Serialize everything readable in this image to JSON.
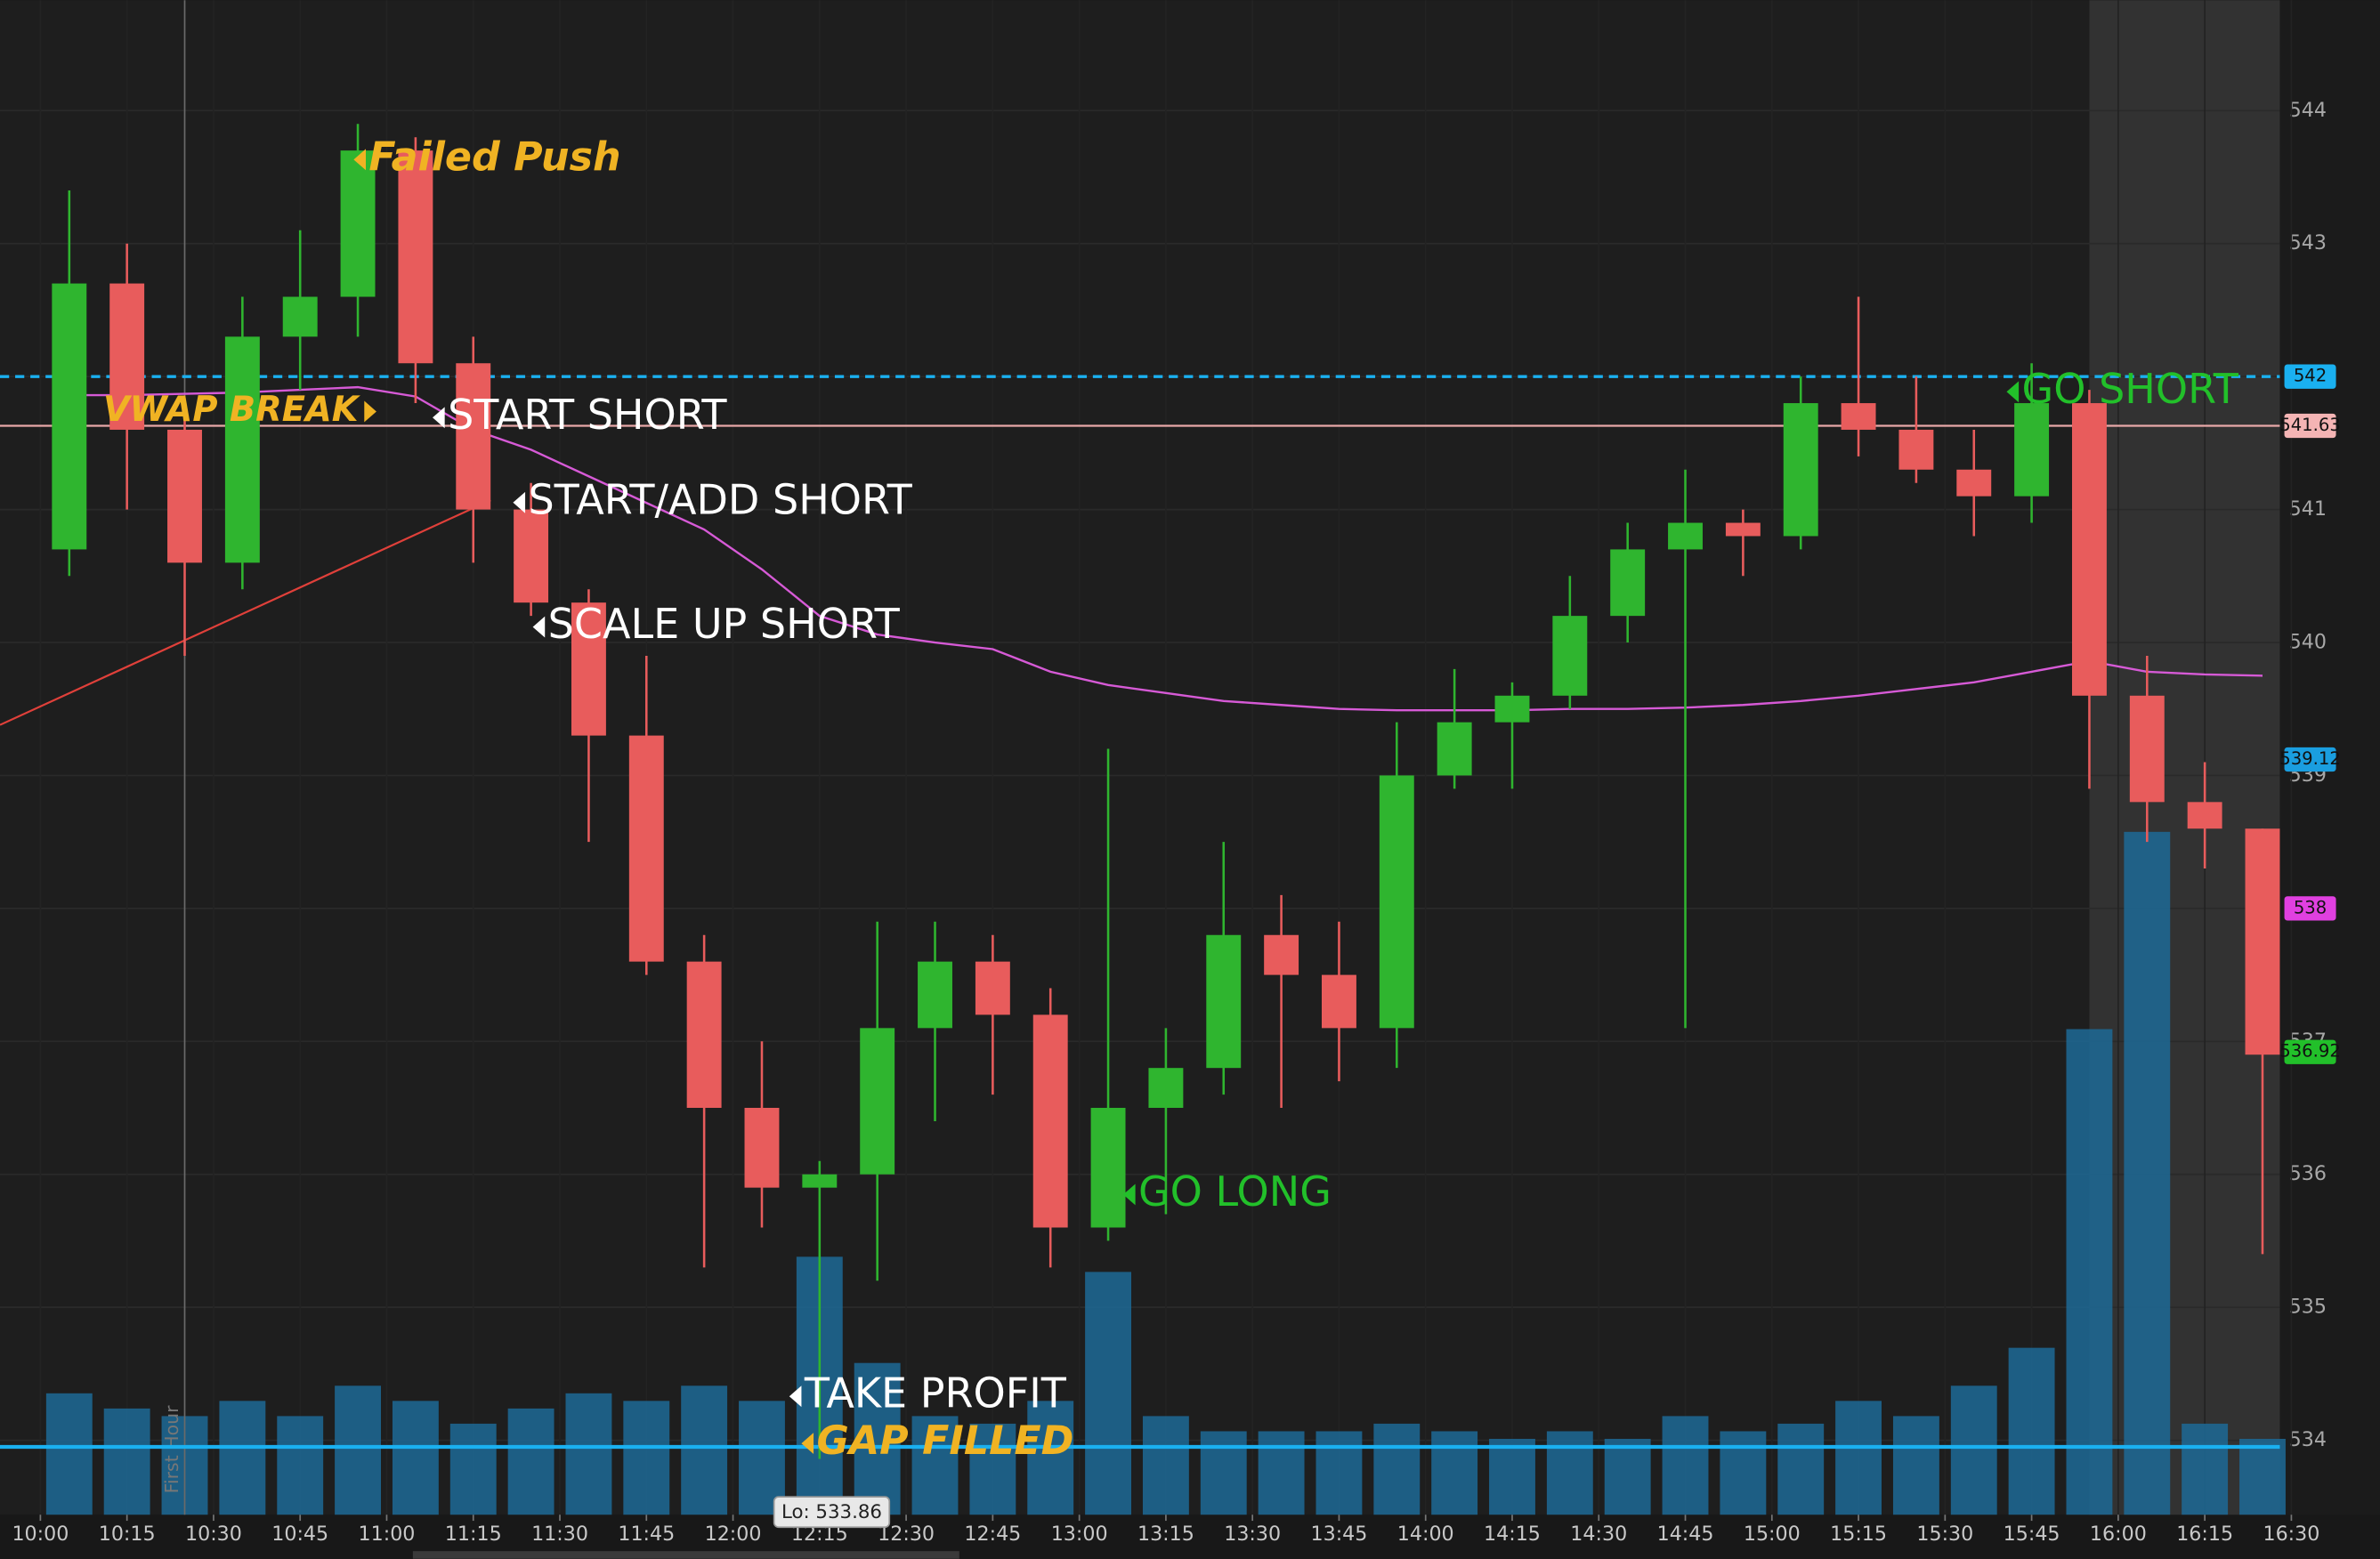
{
  "chart_data": {
    "type": "candlestick",
    "x": [
      "10:00",
      "10:10",
      "10:20",
      "10:30",
      "10:40",
      "10:50",
      "11:00",
      "11:10",
      "11:20",
      "11:30",
      "11:40",
      "11:50",
      "12:00",
      "12:10",
      "12:20",
      "12:30",
      "12:40",
      "12:50",
      "13:00",
      "13:10",
      "13:20",
      "13:30",
      "13:40",
      "13:50",
      "14:00",
      "14:10",
      "14:20",
      "14:30",
      "14:40",
      "14:50",
      "15:00",
      "15:10",
      "15:20",
      "15:30",
      "15:40",
      "15:50",
      "16:00",
      "16:10",
      "16:20"
    ],
    "open": [
      540.7,
      542.7,
      541.6,
      540.6,
      542.3,
      542.6,
      543.7,
      542.1,
      541.0,
      540.3,
      539.3,
      537.6,
      536.5,
      535.9,
      536.0,
      537.1,
      537.6,
      537.2,
      535.6,
      536.5,
      536.8,
      537.8,
      537.5,
      537.1,
      539.0,
      539.4,
      539.6,
      540.2,
      540.7,
      540.9,
      540.8,
      541.8,
      541.6,
      541.3,
      541.1,
      541.8,
      539.6,
      538.8,
      538.6
    ],
    "high": [
      543.4,
      543.0,
      541.8,
      542.6,
      543.1,
      543.9,
      543.8,
      542.3,
      541.2,
      540.4,
      539.9,
      537.8,
      537.0,
      536.1,
      537.9,
      537.9,
      537.8,
      537.4,
      539.2,
      537.1,
      538.5,
      538.1,
      537.9,
      539.4,
      539.8,
      539.7,
      540.5,
      540.9,
      541.3,
      541.0,
      542.0,
      542.6,
      542.0,
      541.6,
      542.1,
      541.9,
      539.9,
      539.1,
      538.6
    ],
    "low": [
      540.5,
      541.0,
      539.9,
      540.4,
      541.9,
      542.3,
      541.8,
      540.6,
      540.2,
      538.5,
      537.5,
      535.3,
      535.6,
      533.86,
      535.2,
      536.4,
      536.6,
      535.3,
      535.5,
      535.7,
      536.6,
      536.5,
      536.7,
      536.8,
      538.9,
      538.9,
      539.5,
      540.0,
      537.1,
      540.5,
      540.7,
      541.4,
      541.2,
      540.8,
      540.9,
      538.9,
      538.5,
      538.3,
      535.4
    ],
    "close": [
      542.7,
      541.6,
      540.6,
      542.3,
      542.6,
      543.7,
      542.1,
      541.0,
      540.3,
      539.3,
      537.6,
      536.5,
      535.9,
      536.0,
      537.1,
      537.6,
      537.2,
      535.6,
      536.5,
      536.8,
      537.8,
      537.5,
      537.1,
      539.0,
      539.4,
      539.6,
      540.2,
      540.7,
      540.9,
      540.8,
      541.8,
      541.6,
      541.3,
      541.1,
      541.8,
      539.6,
      538.8,
      538.6,
      536.9
    ],
    "up_color": "#2fb52f",
    "down_color": "#e85c5c",
    "volume": {
      "values": [
        160,
        140,
        130,
        150,
        130,
        170,
        150,
        120,
        140,
        160,
        150,
        170,
        150,
        340,
        200,
        130,
        120,
        150,
        320,
        130,
        110,
        110,
        110,
        120,
        110,
        100,
        110,
        100,
        130,
        110,
        120,
        150,
        130,
        170,
        220,
        640,
        900,
        120,
        100
      ],
      "color": "#1d6a96"
    },
    "vwap": {
      "values": [
        541.86,
        541.86,
        541.87,
        541.88,
        541.9,
        541.92,
        541.85,
        541.6,
        541.45,
        541.25,
        541.05,
        540.85,
        540.55,
        540.2,
        540.06,
        540.0,
        539.95,
        539.78,
        539.68,
        539.62,
        539.56,
        539.53,
        539.5,
        539.49,
        539.49,
        539.49,
        539.5,
        539.5,
        539.51,
        539.53,
        539.56,
        539.6,
        539.65,
        539.7,
        539.78,
        539.86,
        539.78,
        539.76,
        539.75
      ],
      "color": "#d65ad6"
    },
    "trendline": {
      "x": [
        "09:53",
        "11:18"
      ],
      "y": [
        539.38,
        541.07
      ],
      "color": "#e0403a"
    },
    "hlines": [
      {
        "value": 542,
        "color": "#1ab0f0",
        "style": "dashed"
      },
      {
        "value": 541.63,
        "color": "#e8a8a8",
        "style": "solid"
      },
      {
        "value": 533.95,
        "color": "#1ab0f0",
        "style": "solid"
      }
    ],
    "price_markers": [
      {
        "value": 542,
        "color": "#1ab0f0"
      },
      {
        "value": 541.63,
        "color": "#f4b4b4"
      },
      {
        "value": 539.12,
        "color": "#1a9ee0"
      },
      {
        "value": 538,
        "color": "#e040e0"
      },
      {
        "value": 536.92,
        "color": "#22c02a"
      }
    ],
    "annotations": [
      {
        "text": "Failed Push",
        "color": "#f0b323",
        "style": "bold-italic"
      },
      {
        "text": "VWAP BREAK",
        "color": "#f0b323",
        "style": "bold-italic"
      },
      {
        "text": "START SHORT",
        "color": "#ffffff",
        "style": "normal"
      },
      {
        "text": "START/ADD SHORT",
        "color": "#ffffff",
        "style": "normal"
      },
      {
        "text": "SCALE UP SHORT",
        "color": "#ffffff",
        "style": "normal"
      },
      {
        "text": "GO LONG",
        "color": "#22c02a",
        "style": "normal"
      },
      {
        "text": "TAKE PROFIT",
        "color": "#ffffff",
        "style": "normal"
      },
      {
        "text": "GAP FILLED",
        "color": "#f0b323",
        "style": "bold-italic"
      },
      {
        "text": "GO SHORT",
        "color": "#22c02a",
        "style": "normal"
      }
    ],
    "low_label": "Lo: 533.86",
    "first_hour": {
      "label": "First Hour",
      "x": "10:25"
    },
    "shade_from": "15:55",
    "xlim": [
      "09:53",
      "16:28"
    ],
    "xticks": [
      "10:00",
      "10:15",
      "10:30",
      "10:45",
      "11:00",
      "11:15",
      "11:30",
      "11:45",
      "12:00",
      "12:15",
      "12:30",
      "12:45",
      "13:00",
      "13:15",
      "13:30",
      "13:45",
      "14:00",
      "14:15",
      "14:30",
      "14:45",
      "15:00",
      "15:15",
      "15:30",
      "15:45",
      "16:00",
      "16:15",
      "16:30"
    ],
    "ylim": [
      533.44,
      544.83
    ],
    "yticks": [
      534,
      535,
      536,
      537,
      538,
      539,
      540,
      541,
      542,
      543,
      544
    ],
    "grid": true
  }
}
